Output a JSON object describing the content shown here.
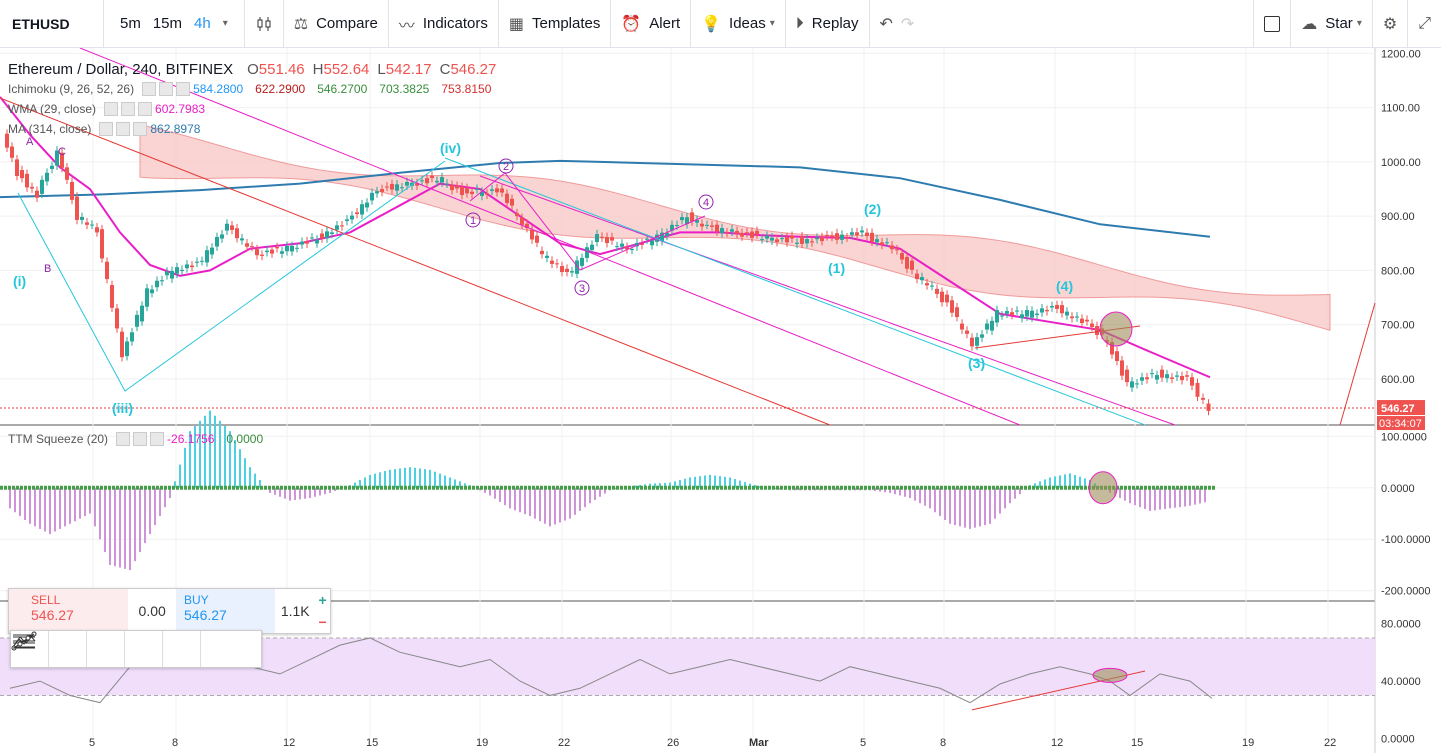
{
  "toolbar": {
    "symbol": "ETHUSD",
    "resolutions": [
      "5m",
      "15m",
      "4h"
    ],
    "active_resolution": "4h",
    "compare": "Compare",
    "indicators": "Indicators",
    "templates": "Templates",
    "alert": "Alert",
    "ideas": "Ideas",
    "replay": "Replay",
    "star": "Star"
  },
  "legend": {
    "title": "Ethereum / Dollar, 240, BITFINEX",
    "open_label": "O",
    "open": "551.46",
    "high_label": "H",
    "high": "552.64",
    "low_label": "L",
    "low": "542.17",
    "close_label": "C",
    "close": "546.27",
    "ichimoku_name": "Ichimoku (9, 26, 52, 26)",
    "ichimoku_values": [
      "584.2800",
      "622.2900",
      "546.2700",
      "703.3825",
      "753.8150"
    ],
    "wma_name": "WMA (29, close)",
    "wma_value": "602.7983",
    "ma_name": "MA (314, close)",
    "ma_value": "862.8978",
    "ttm_name": "TTM Squeeze (20)",
    "ttm_values": [
      "-26.1756",
      "0.0000"
    ]
  },
  "trade": {
    "sell_label": "SELL",
    "sell_price": "546.27",
    "spread": "0.00",
    "buy_label": "BUY",
    "buy_price": "546.27",
    "quantity": "1.1K"
  },
  "colors": {
    "up": "#26a69a",
    "down": "#ef5350",
    "wma": "#e91ec7",
    "ma": "#2e7bb0",
    "cloud_bear": "#f7c9c7",
    "cloud_bull": "#c8e6c9",
    "cyan": "#26c6da",
    "rsi_band": "#f0defb"
  },
  "chart_data": [
    {
      "type": "line",
      "title": "Ethereum / Dollar, 240, BITFINEX",
      "x_tick_labels": [
        "5",
        "8",
        "12",
        "15",
        "19",
        "22",
        "26",
        "Mar",
        "5",
        "8",
        "12",
        "15",
        "19",
        "22"
      ],
      "y_tick_labels": [
        "1200.00",
        "1100.00",
        "1000.00",
        "900.00",
        "800.00",
        "700.00",
        "600.00"
      ],
      "ylim": [
        515,
        1210
      ],
      "last_price": "546.27",
      "countdown": "03:34:07",
      "series": [
        {
          "name": "MA (314, close)",
          "x": [
            0,
            100,
            200,
            300,
            400,
            500,
            560,
            600,
            700,
            800,
            900,
            1000,
            1100,
            1210
          ],
          "values": [
            935,
            940,
            948,
            960,
            980,
            998,
            1002,
            1000,
            995,
            990,
            970,
            930,
            885,
            862
          ]
        },
        {
          "name": "WMA (29, close)",
          "x": [
            0,
            30,
            60,
            90,
            120,
            150,
            180,
            210,
            250,
            300,
            350,
            400,
            440,
            480,
            520,
            560,
            600,
            640,
            680,
            720,
            760,
            800,
            850,
            900,
            950,
            1000,
            1050,
            1100,
            1150,
            1210
          ],
          "values": [
            1120,
            1050,
            990,
            950,
            870,
            810,
            790,
            800,
            840,
            850,
            870,
            920,
            960,
            950,
            900,
            850,
            830,
            850,
            870,
            870,
            865,
            862,
            860,
            840,
            780,
            720,
            705,
            690,
            650,
            603
          ]
        },
        {
          "name": "Price",
          "x": [
            5,
            20,
            40,
            60,
            80,
            100,
            125,
            150,
            175,
            200,
            230,
            260,
            290,
            320,
            350,
            380,
            410,
            440,
            470,
            500,
            520,
            545,
            570,
            600,
            630,
            660,
            690,
            710,
            740,
            770,
            800,
            830,
            860,
            890,
            920,
            950,
            975,
            1000,
            1030,
            1060,
            1090,
            1110,
            1130,
            1160,
            1190,
            1212
          ],
          "values": [
            1060,
            980,
            940,
            1020,
            900,
            870,
            640,
            760,
            800,
            810,
            880,
            830,
            840,
            860,
            890,
            950,
            960,
            970,
            940,
            950,
            900,
            830,
            790,
            860,
            840,
            860,
            900,
            880,
            870,
            860,
            855,
            860,
            870,
            850,
            790,
            740,
            660,
            720,
            720,
            730,
            700,
            670,
            590,
            610,
            600,
            546
          ]
        }
      ]
    },
    {
      "type": "bar",
      "title": "TTM Squeeze (20)",
      "y_tick_labels": [
        "100.0000",
        "0.0000",
        "-100.0000",
        "-200.0000"
      ],
      "ylim": [
        -220,
        120
      ],
      "series": [
        {
          "name": "TTM Squeeze (20)",
          "x": [
            10,
            30,
            50,
            70,
            90,
            110,
            130,
            150,
            170,
            190,
            210,
            230,
            250,
            270,
            290,
            310,
            330,
            350,
            370,
            390,
            410,
            430,
            450,
            470,
            490,
            510,
            530,
            550,
            570,
            590,
            610,
            630,
            650,
            670,
            690,
            710,
            730,
            750,
            770,
            790,
            810,
            830,
            850,
            870,
            890,
            910,
            930,
            950,
            970,
            990,
            1010,
            1030,
            1050,
            1070,
            1090,
            1110,
            1130,
            1150,
            1170,
            1190,
            1210
          ],
          "values": [
            -40,
            -70,
            -90,
            -70,
            -50,
            -150,
            -160,
            -90,
            -20,
            110,
            150,
            110,
            40,
            -10,
            -25,
            -20,
            -10,
            5,
            25,
            35,
            40,
            35,
            20,
            5,
            -15,
            -40,
            -55,
            -75,
            -60,
            -30,
            -5,
            3,
            8,
            10,
            20,
            25,
            20,
            8,
            -2,
            -5,
            -5,
            -5,
            -5,
            -5,
            -10,
            -20,
            -40,
            -70,
            -80,
            -70,
            -30,
            5,
            20,
            28,
            15,
            -10,
            -30,
            -45,
            -40,
            -35,
            -26
          ]
        }
      ]
    },
    {
      "type": "line",
      "title": "",
      "y_tick_labels": [
        "80.0000",
        "40.0000",
        "0.0000"
      ],
      "ylim": [
        -10,
        95
      ],
      "series": [
        {
          "name": "",
          "x": [
            10,
            40,
            70,
            100,
            130,
            160,
            190,
            220,
            250,
            280,
            310,
            340,
            370,
            400,
            430,
            460,
            490,
            520,
            550,
            580,
            610,
            640,
            670,
            700,
            730,
            760,
            790,
            820,
            850,
            880,
            910,
            940,
            970,
            1000,
            1030,
            1060,
            1090,
            1110,
            1130,
            1160,
            1190,
            1212
          ],
          "values": [
            35,
            40,
            30,
            25,
            50,
            55,
            60,
            55,
            50,
            45,
            55,
            65,
            70,
            60,
            55,
            50,
            55,
            40,
            30,
            35,
            45,
            55,
            45,
            50,
            55,
            50,
            45,
            40,
            50,
            45,
            40,
            35,
            25,
            38,
            45,
            50,
            45,
            40,
            30,
            45,
            40,
            28
          ]
        }
      ]
    }
  ]
}
